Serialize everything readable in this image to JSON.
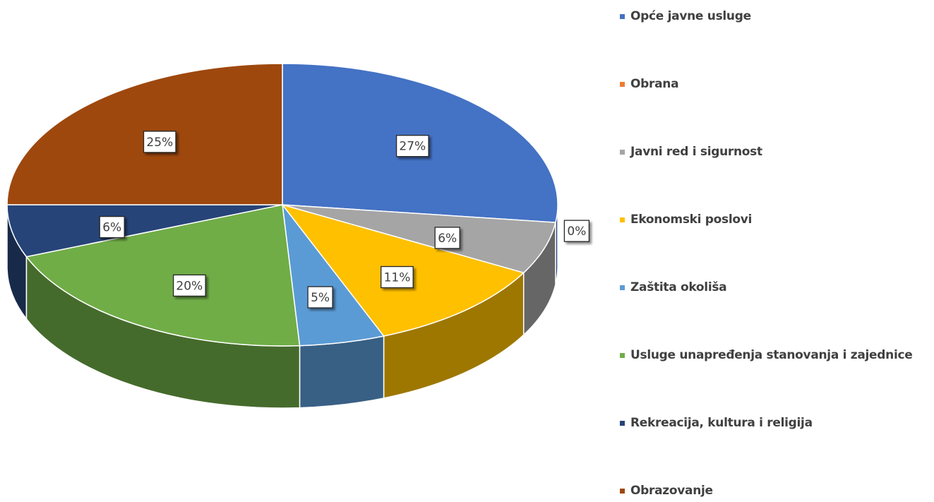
{
  "chart_data": {
    "type": "pie",
    "three_d": true,
    "legend": "right",
    "categories": [
      "Opće javne usluge",
      "Obrana",
      "Javni red i sigurnost",
      "Ekonomski poslovi",
      "Zaštita okoliša",
      "Usluge unapređenja stanovanja i zajednice",
      "Rekreacija, kultura i religija",
      "Obrazovanje"
    ],
    "values": [
      27,
      0,
      6,
      11,
      5,
      20,
      6,
      25
    ],
    "data_labels": [
      "27%",
      "0%",
      "6%",
      "11%",
      "5%",
      "20%",
      "6%",
      "25%"
    ],
    "colors": [
      "#4472c4",
      "#ed7d31",
      "#a5a5a5",
      "#ffc000",
      "#5b9bd5",
      "#70ad47",
      "#264478",
      "#9e480e"
    ]
  }
}
